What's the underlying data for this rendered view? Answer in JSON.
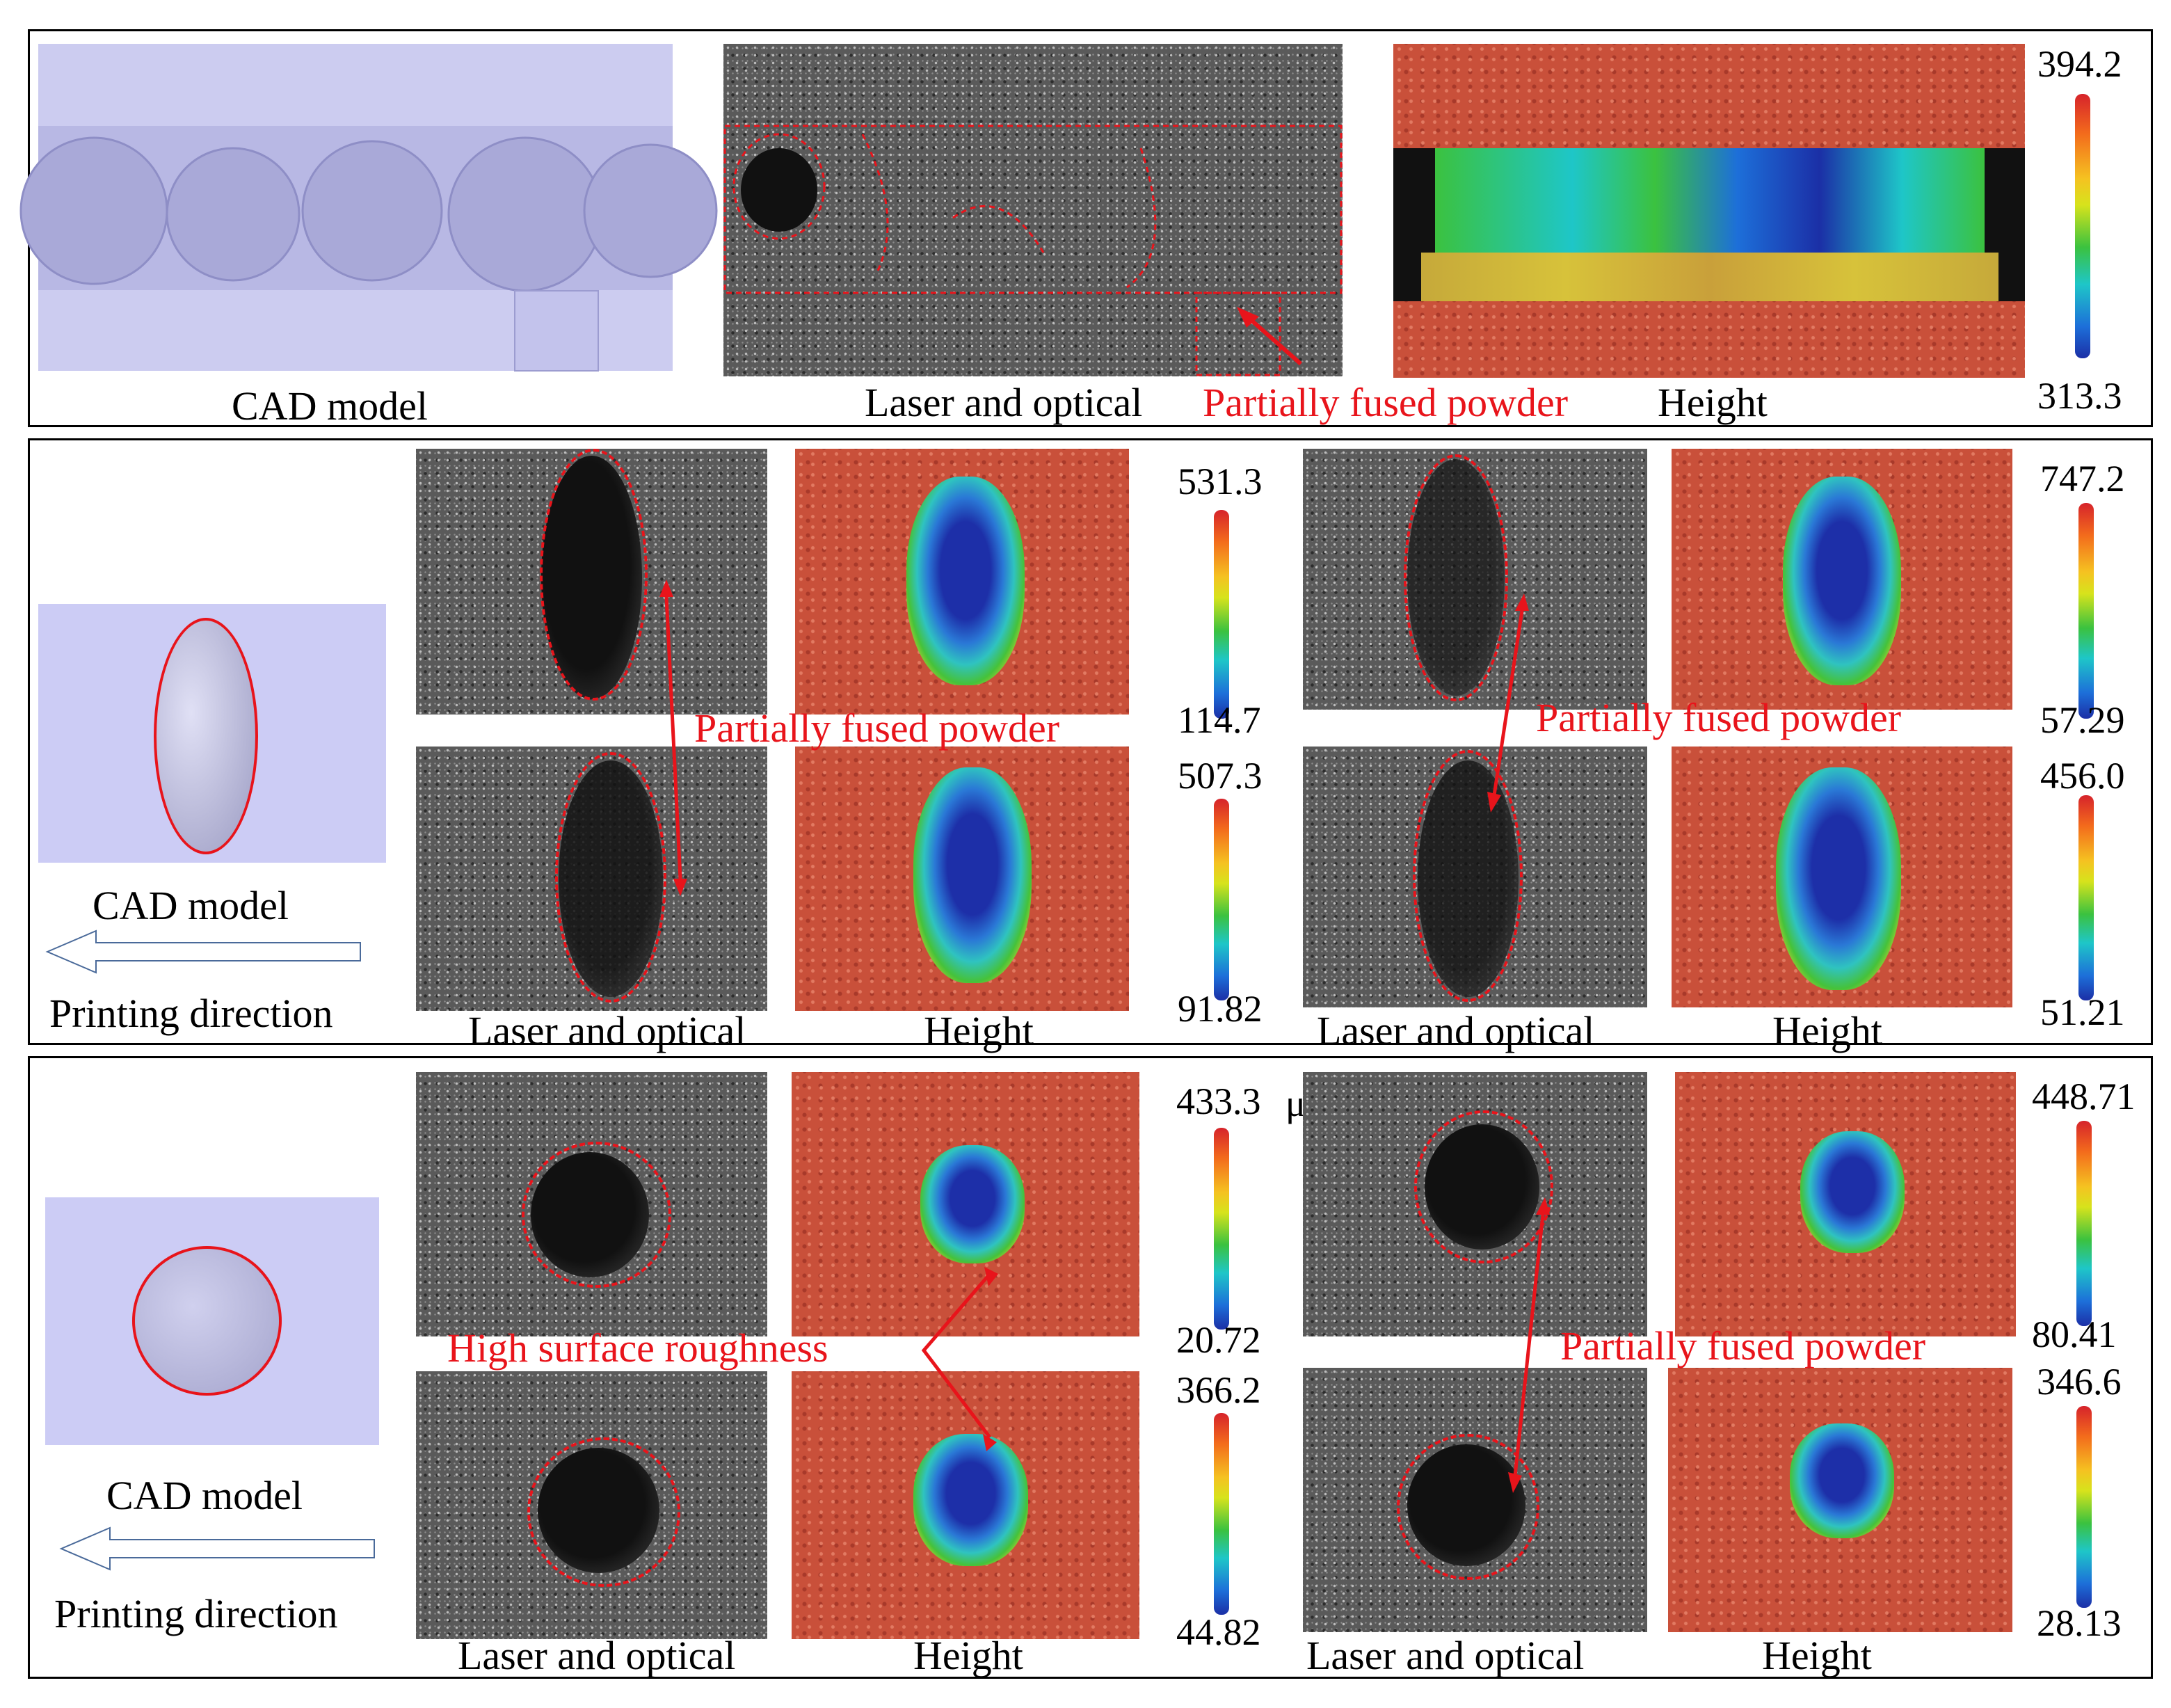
{
  "top_panel": {
    "captions": {
      "cad": "CAD model",
      "laser": "Laser and optical",
      "annotation": "Partially fused powder",
      "height": "Height"
    },
    "colorbar": {
      "max": "394.2",
      "min": "313.3"
    }
  },
  "middle_panel": {
    "captions": {
      "cad": "CAD model",
      "direction": "Printing direction",
      "laser_left": "Laser and optical",
      "height_left": "Height",
      "laser_right": "Laser and optical",
      "height_right": "Height",
      "annotation_left": "Partially fused powder",
      "annotation_right": "Partially fused powder"
    },
    "colorbars": {
      "left_top": {
        "max": "531.3",
        "min": "114.7"
      },
      "left_bottom": {
        "max": "507.3",
        "min": "91.82"
      },
      "right_top": {
        "max": "747.2",
        "min": "57.29"
      },
      "right_bottom": {
        "max": "456.0",
        "min": "51.21"
      }
    }
  },
  "bottom_panel": {
    "captions": {
      "cad": "CAD model",
      "direction": "Printing direction",
      "laser_left": "Laser and optical",
      "height_left": "Height",
      "laser_right": "Laser and optical",
      "height_right": "Height",
      "annotation_left": "High surface roughness",
      "annotation_right": "Partially fused powder"
    },
    "colorbars": {
      "left_top": {
        "max": "433.3",
        "min": "20.72",
        "unit_fragment": "μ"
      },
      "left_bottom": {
        "max": "366.2",
        "min": "44.82"
      },
      "right_top": {
        "max": "448.71",
        "min": "80.41"
      },
      "right_bottom": {
        "max": "346.6",
        "min": "28.13"
      }
    }
  },
  "colors": {
    "annotation_red": "#e8141b",
    "cad_fill": "#ccccf5"
  }
}
